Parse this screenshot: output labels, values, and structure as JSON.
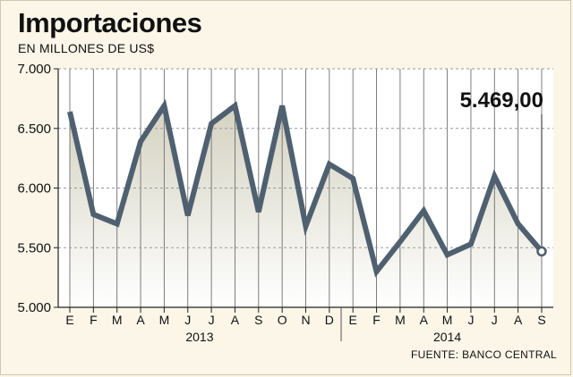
{
  "header": {
    "title": "Importaciones",
    "subtitle": "EN MILLONES DE US$"
  },
  "footer": {
    "source": "FUENTE: BANCO CENTRAL"
  },
  "colors": {
    "line": "#4f6070",
    "background": "#fbf6e8",
    "area_top": "#d4d2c0",
    "gridline": "#999999"
  },
  "chart_data": {
    "type": "area",
    "title": "Importaciones",
    "subtitle": "EN MILLONES DE US$",
    "ylim": [
      5000,
      7000
    ],
    "yticks": [
      5000,
      5500,
      6000,
      6500,
      7000
    ],
    "ytick_labels": [
      "5.000",
      "5.500",
      "6.000",
      "6.500",
      "7.000"
    ],
    "x": [
      "E",
      "F",
      "M",
      "A",
      "M",
      "J",
      "J",
      "A",
      "S",
      "O",
      "N",
      "D",
      "E",
      "F",
      "M",
      "A",
      "M",
      "J",
      "J",
      "A",
      "S"
    ],
    "years": [
      {
        "label": "2013",
        "start": 0,
        "end": 11
      },
      {
        "label": "2014",
        "start": 12,
        "end": 20
      }
    ],
    "series": [
      {
        "values": [
          6640,
          5780,
          5700,
          6390,
          6690,
          5770,
          6540,
          6690,
          5800,
          6690,
          5680,
          6200,
          6080,
          5300,
          5550,
          5810,
          5440,
          5530,
          6100,
          5700,
          5469
        ]
      }
    ],
    "annotation": {
      "text": "5.469,00",
      "index": 20
    },
    "grid": true,
    "source": "FUENTE: BANCO CENTRAL"
  }
}
